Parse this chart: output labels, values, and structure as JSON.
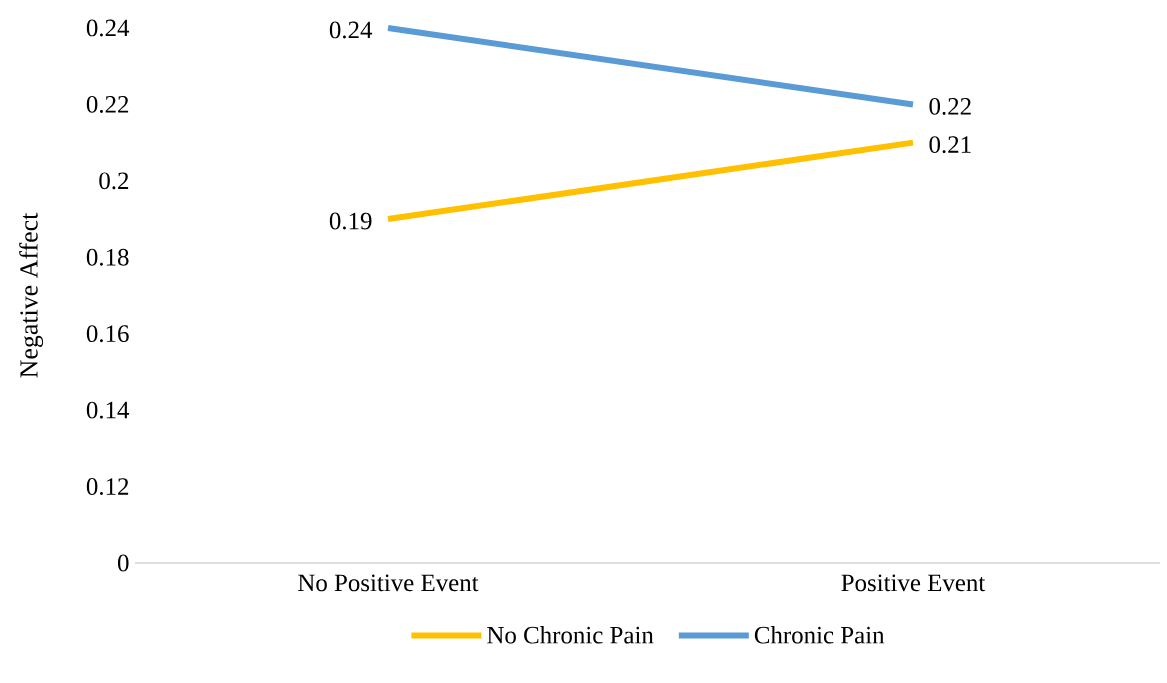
{
  "chart_data": {
    "type": "line",
    "ylabel": "Negative Affect",
    "categories": [
      "No Positive Event",
      "Positive Event"
    ],
    "series": [
      {
        "name": "No Chronic Pain",
        "color": "#ffc000",
        "values": [
          0.19,
          0.21
        ]
      },
      {
        "name": "Chronic Pain",
        "color": "#5b9bd5",
        "values": [
          0.24,
          0.22
        ]
      }
    ],
    "ylim": [
      0.1,
      0.24
    ],
    "yticks": [
      {
        "value": 0.1,
        "label": "0"
      },
      0.12,
      0.14,
      0.16,
      0.18,
      0.2,
      0.22,
      0.24
    ],
    "data_labels": true,
    "legend": "bottom",
    "grid": false,
    "marker": "none",
    "line_style": "solid"
  }
}
